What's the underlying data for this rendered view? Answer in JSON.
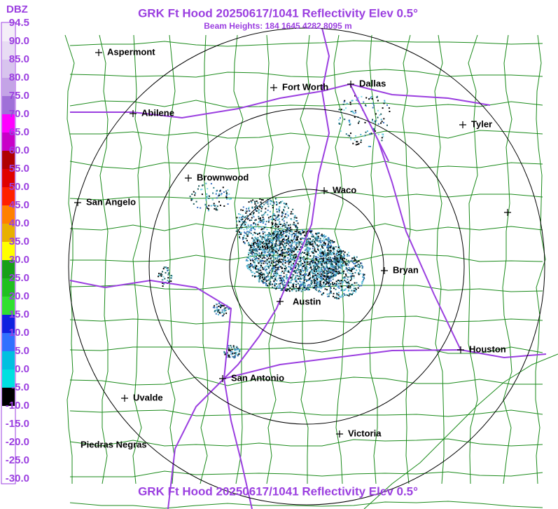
{
  "header": {
    "title": "GRK Ft Hood 20250617/1041 Reflectivity Elev 0.5°",
    "subtitle": "Beam Heights: 184 1645 4282 8095 m"
  },
  "footer": {
    "title": "GRK Ft Hood 20250617/1041 Reflectivity Elev 0.5°"
  },
  "legend": {
    "unit": "DBZ",
    "labels": [
      "94.5",
      "90.0",
      "85.0",
      "80.0",
      "75.0",
      "70.0",
      "65.0",
      "60.0",
      "55.0",
      "50.0",
      "45.0",
      "40.0",
      "35.0",
      "30.0",
      "25.0",
      "20.0",
      "15.0",
      "10.0",
      "5.0",
      "0.0",
      "-5.0",
      "-10.0",
      "-15.0",
      "-20.0",
      "-25.0",
      "-30.0"
    ]
  },
  "cities": [
    {
      "name": "Aspermont"
    },
    {
      "name": "Fort Worth"
    },
    {
      "name": "Dallas"
    },
    {
      "name": "Abilene"
    },
    {
      "name": "Tyler"
    },
    {
      "name": "Brownwood"
    },
    {
      "name": "Waco"
    },
    {
      "name": "San Angelo"
    },
    {
      "name": "Bryan"
    },
    {
      "name": "Austin"
    },
    {
      "name": "Houston"
    },
    {
      "name": "San Antonio"
    },
    {
      "name": "Uvalde"
    },
    {
      "name": "Victoria"
    },
    {
      "name": "Piedras Negras"
    }
  ]
}
